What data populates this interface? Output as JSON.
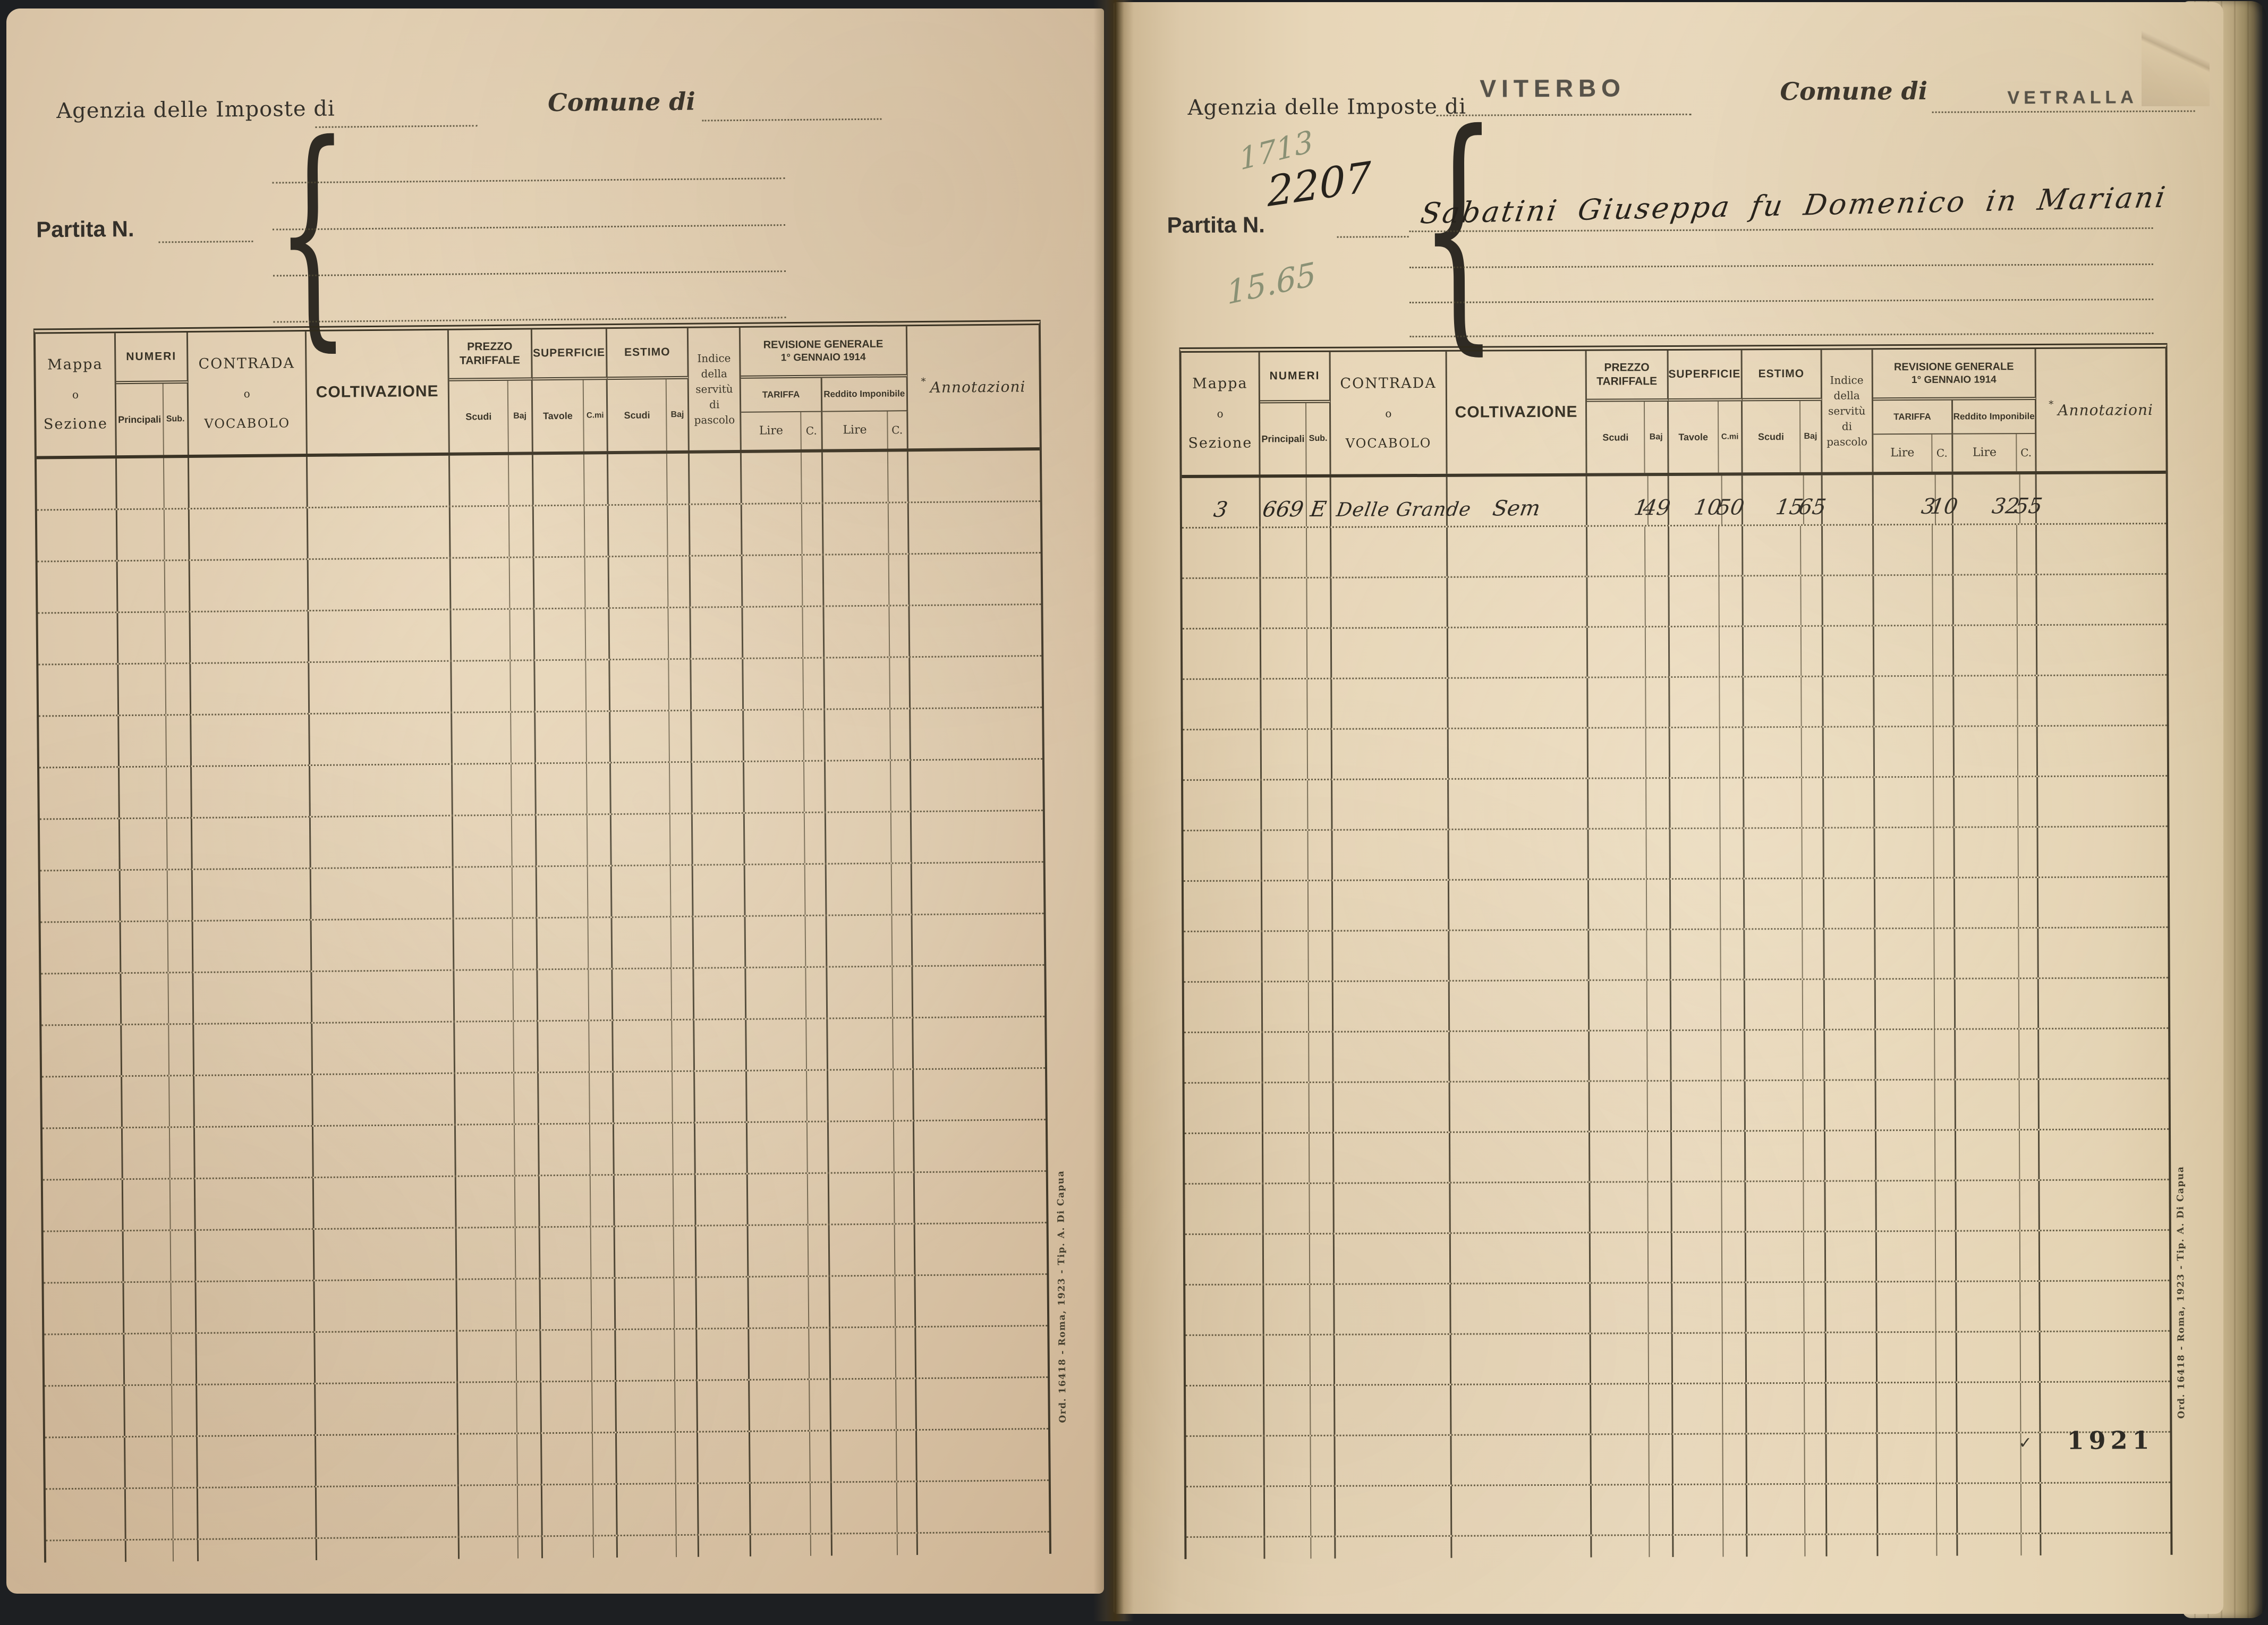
{
  "shared": {
    "printer_mark": "Ord. 16418 - Roma, 1923 - Tip. A. Di Capua"
  },
  "headers": {
    "mappa": "Mappa",
    "o": "o",
    "sezione": "Sezione",
    "numeri": "NUMERI",
    "principali": "Principali",
    "sub": "Sub.",
    "contrada": "CONTRADA",
    "vocabolo": "VOCABOLO",
    "coltivazione": "COLTIVAZIONE",
    "prezzo_1": "PREZZO",
    "prezzo_2": "TARIFFALE",
    "superficie": "SUPERFICIE",
    "estimo": "ESTIMO",
    "scudi": "Scudi",
    "baj": "Baj",
    "tavole": "Tavole",
    "cmi": "C.mi",
    "indice": [
      "Indice",
      "della",
      "servitù",
      "di",
      "pascolo"
    ],
    "revisione_1": "REVISIONE GENERALE",
    "revisione_2": "1° GENNAIO 1914",
    "tariffa": "TARIFFA",
    "reddito": "Reddito Imponibile",
    "lire": "Lire",
    "c": "C.",
    "annotazioni_star": "*",
    "annotazioni": "Annotazioni"
  },
  "left_page": {
    "agenzia_label": "Agenzia delle Imposte di",
    "comune_label": "Comune di",
    "partita_label": "Partita N."
  },
  "right_page": {
    "agenzia_label": "Agenzia delle Imposte di",
    "agenzia_value": "VITERBO",
    "comune_label": "Comune di",
    "comune_value": "VETRALLA",
    "partita_label": "Partita N.",
    "partita_value": "2207",
    "pencil_top": "1713",
    "pencil_bottom": "15.65",
    "owner_line": "Sabatini Giuseppa fu Domenico in Mariani",
    "year_stamp": "1921",
    "check_mark": "✓",
    "row1": {
      "mappa": "3",
      "principale": "669",
      "sub": "E",
      "contrada": "Delle Grande",
      "coltivazione": "Sem",
      "prezzo_scudi": "1",
      "prezzo_baj": "49",
      "superficie_tavole": "10",
      "superficie_cmi": "50",
      "estimo_scudi": "15",
      "estimo_baj": "65",
      "tariffa_lire": "3",
      "tariffa_c": "10",
      "reddito_lire": "32",
      "reddito_c": "55"
    }
  }
}
